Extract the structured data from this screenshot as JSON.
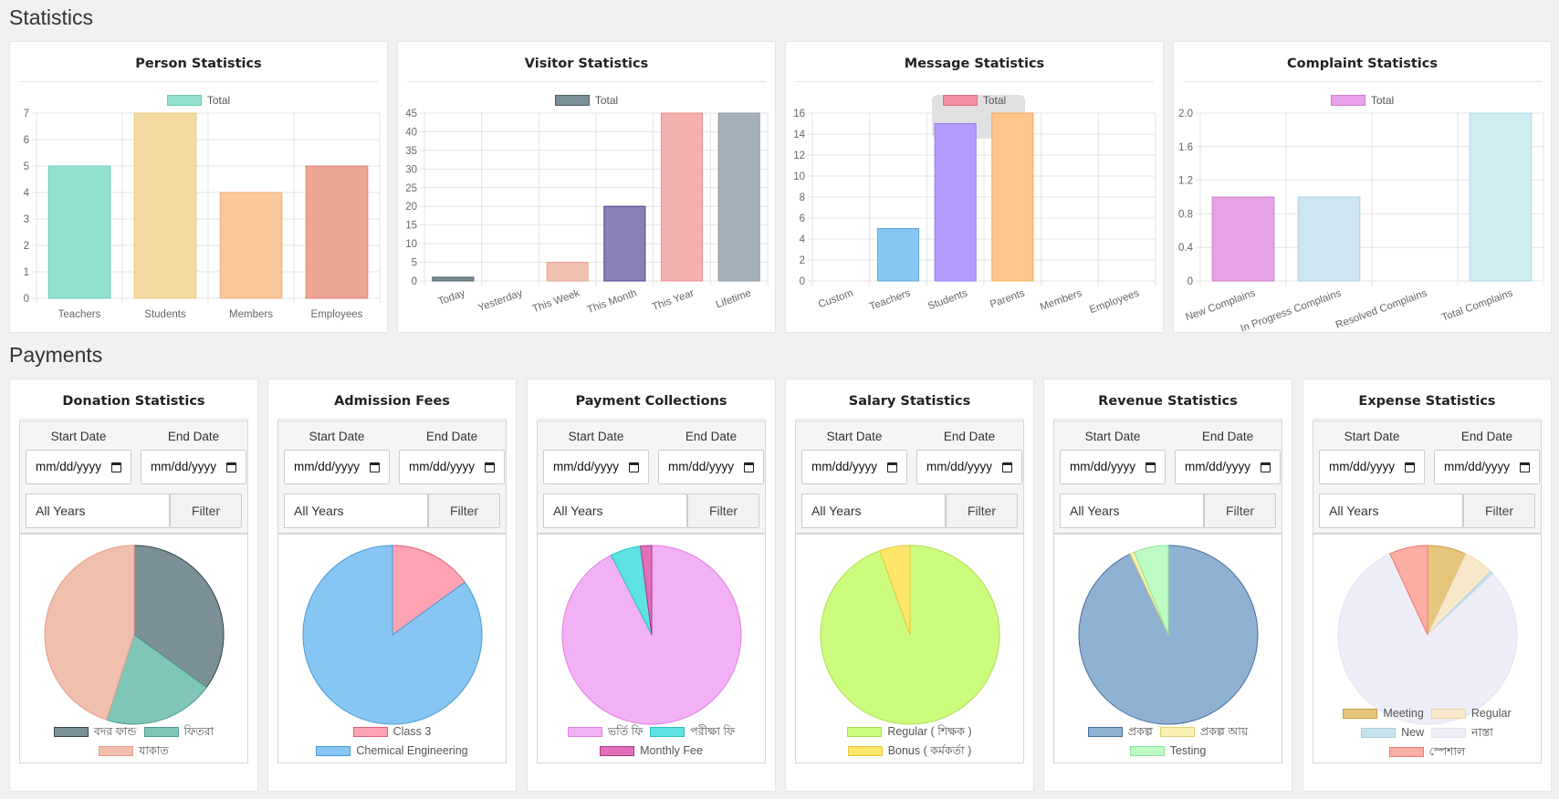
{
  "headings": {
    "statistics": "Statistics",
    "payments": "Payments"
  },
  "bar_charts": [
    {
      "title": "Person Statistics",
      "chart_data": {
        "type": "bar",
        "legend": "Total",
        "categories": [
          "Teachers",
          "Students",
          "Members",
          "Employees"
        ],
        "values": [
          5,
          7,
          4,
          5
        ],
        "ylim": [
          0,
          7
        ],
        "yticks": [
          0,
          1,
          2,
          3,
          4,
          5,
          6,
          7
        ],
        "fill": [
          "#92e1d1",
          "#f3dba3",
          "#f8c79b",
          "#eca694"
        ],
        "stroke": [
          "#6ecdb8",
          "#e7c981",
          "#f0ad79",
          "#e0807a"
        ],
        "legend_color": "#92e1d1",
        "legend_stroke": "#6ecdb8",
        "rotate": false
      }
    },
    {
      "title": "Visitor Statistics",
      "chart_data": {
        "type": "bar",
        "legend": "Total",
        "categories": [
          "Today",
          "Yesterday",
          "This Week",
          "This Month",
          "This Year",
          "Lifetime"
        ],
        "values": [
          1,
          0,
          5,
          20,
          45,
          45
        ],
        "ylim": [
          0,
          45
        ],
        "yticks": [
          0,
          5,
          10,
          15,
          20,
          25,
          30,
          35,
          40,
          45
        ],
        "fill": [
          "#7a8c94",
          "#7a8c94",
          "#f1bfb0",
          "#8b80b6",
          "#f4afaf",
          "#a4b0bb"
        ],
        "stroke": [
          "#4f5f67",
          "#4f5f67",
          "#e9a591",
          "#4e4486",
          "#ec8d8f",
          "#8e9aa6"
        ],
        "legend_color": "#7a8f98",
        "legend_stroke": "#4f5f67",
        "rotate": true
      }
    },
    {
      "title": "Message Statistics",
      "chart_data": {
        "type": "bar",
        "legend": "Total",
        "categories": [
          "Custom",
          "Teachers",
          "Students",
          "Parents",
          "Members",
          "Employees"
        ],
        "values": [
          0,
          5,
          15,
          16,
          0,
          0
        ],
        "ylim": [
          0,
          16
        ],
        "yticks": [
          0,
          2,
          4,
          6,
          8,
          10,
          12,
          14,
          16
        ],
        "fill": [
          "#ffffff",
          "#88c7ef",
          "#b39cfb",
          "#fec58c",
          "#ffffff",
          "#ffffff"
        ],
        "stroke": [
          "#ffffff",
          "#5aa8dc",
          "#9a7bf3",
          "#f9a85b",
          "#ffffff",
          "#ffffff"
        ],
        "legend_color": "#f08fa0",
        "legend_stroke": "#de6e84",
        "rotate": true,
        "tooltip": true
      }
    },
    {
      "title": "Complaint Statistics",
      "chart_data": {
        "type": "bar",
        "legend": "Total",
        "categories": [
          "New Complains",
          "In Progress Complains",
          "Resolved Complains",
          "Total Complains"
        ],
        "values": [
          1,
          1,
          0,
          2
        ],
        "ylim": [
          0,
          2
        ],
        "yticks": [
          "0",
          "0.4",
          "0.8",
          "1.2",
          "1.6",
          "2.0"
        ],
        "fill": [
          "#e6a2e6",
          "#cde6f1",
          "#ffffff",
          "#cfecf1"
        ],
        "stroke": [
          "#cf7dd0",
          "#a9d3e4",
          "#ffffff",
          "#a9dbe5"
        ],
        "legend_color": "#eaa1ec",
        "legend_stroke": "#cf7dd0",
        "rotate": true
      }
    }
  ],
  "filter": {
    "start_label": "Start Date",
    "end_label": "End Date",
    "date_placeholder": "mm/dd/yyyy",
    "years": "All Years",
    "filter_button": "Filter"
  },
  "pie_charts": [
    {
      "title": "Donation Statistics",
      "chart_data": {
        "type": "pie",
        "labels": [
          "বদর ফান্ড",
          "ফিতরা",
          "যাকাত"
        ],
        "values": [
          35,
          20,
          45
        ],
        "colors": [
          "#7a8f96",
          "#7fc6b9",
          "#f1bfad"
        ],
        "strokes": [
          "#33454e",
          "#4d9b90",
          "#e49d86"
        ],
        "legend_rows": [
          [
            0,
            1
          ],
          [
            2
          ]
        ]
      }
    },
    {
      "title": "Admission Fees",
      "chart_data": {
        "type": "pie",
        "labels": [
          "Class 3",
          "Chemical Engineering"
        ],
        "values": [
          15,
          85
        ],
        "colors": [
          "#fda3b3",
          "#87c6f2"
        ],
        "strokes": [
          "#e0607a",
          "#4c9ad4"
        ],
        "legend_rows": [
          [
            0
          ],
          [
            1
          ]
        ]
      }
    },
    {
      "title": "Payment Collections",
      "chart_data": {
        "type": "pie",
        "labels": [
          "ভর্তি ফি",
          "পরীক্ষা ফি",
          "Monthly Fee"
        ],
        "values": [
          92.5,
          5.5,
          2
        ],
        "colors": [
          "#f2b1f4",
          "#5ee2e4",
          "#e26fb9"
        ],
        "strokes": [
          "#e27ee7",
          "#29c0c4",
          "#a63a85"
        ],
        "legend_rows": [
          [
            0,
            1
          ],
          [
            2
          ]
        ]
      }
    },
    {
      "title": "Salary Statistics",
      "chart_data": {
        "type": "pie",
        "labels": [
          "Regular ( শিক্ষক )",
          "Bonus ( কর্মকর্তা )"
        ],
        "values": [
          94.5,
          5.5
        ],
        "colors": [
          "#ccfc7d",
          "#fde66a"
        ],
        "strokes": [
          "#aedc4f",
          "#ebc53c"
        ],
        "legend_rows": [
          [
            0
          ],
          [
            1
          ]
        ]
      }
    },
    {
      "title": "Revenue Statistics",
      "chart_data": {
        "type": "pie",
        "labels": [
          "প্রকল্প",
          "প্রকল্প আয়",
          "Testing"
        ],
        "values": [
          93,
          0.8,
          6.2
        ],
        "colors": [
          "#8fb2d3",
          "#f9f1b0",
          "#bdfcc4"
        ],
        "strokes": [
          "#446f9e",
          "#e2cf6e",
          "#8fe39a"
        ],
        "legend_rows": [
          [
            0,
            1
          ],
          [
            2
          ]
        ]
      }
    },
    {
      "title": "Expense Statistics",
      "chart_data": {
        "type": "pie",
        "labels": [
          "Meeting",
          "Regular",
          "New",
          "নাস্তা",
          "স্পেশাল"
        ],
        "values": [
          7,
          5.5,
          0.6,
          80,
          6.9
        ],
        "colors": [
          "#e6c67a",
          "#f8e8cb",
          "#c8e2ec",
          "#eeeef8",
          "#fbaca3"
        ],
        "strokes": [
          "#c5a04a",
          "#eed3a3",
          "#a5cfe0",
          "#e3e3f2",
          "#ec7a6f"
        ],
        "legend_rows": [
          [
            0,
            1
          ],
          [
            2,
            3
          ],
          [
            4
          ]
        ]
      }
    }
  ]
}
